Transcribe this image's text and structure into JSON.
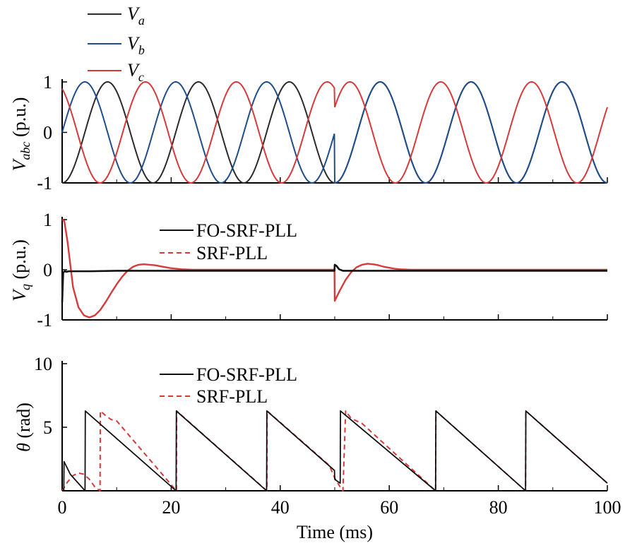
{
  "colors": {
    "Va": "#2b2b2b",
    "Vb": "#1f4e8c",
    "Vc": "#d63a3a",
    "fo": "#111111",
    "srf": "#d63a3a"
  },
  "chart_data": [
    {
      "type": "line",
      "ylabel": "Vabc (p.u.)",
      "ylabel_main": "V",
      "ylabel_sub": "abc",
      "ylabel_rest": " (p.u.)",
      "ylim": [
        -1,
        1
      ],
      "xlim": [
        0,
        100
      ],
      "yticks": [
        "1",
        "0",
        "-1"
      ],
      "yticks_values": [
        1,
        0,
        -1
      ],
      "legend": [
        "Va",
        "Vb",
        "Vc"
      ],
      "legend_main": "V",
      "legend_subs": [
        "a",
        "b",
        "c"
      ],
      "series": [
        {
          "name": "Va",
          "amplitude": 1,
          "frequency_hz": 60,
          "phase_deg": -90,
          "phase_shift_at_ms": 50,
          "phase_after_deg": -90
        },
        {
          "name": "Vb",
          "amplitude": 1,
          "frequency_hz": 60,
          "phase_deg": 0,
          "phase_shift_at_ms": 50,
          "phase_after_deg": -90
        },
        {
          "name": "Vc",
          "amplitude": 1,
          "frequency_hz": 60,
          "phase_deg": 120,
          "phase_shift_at_ms": 50,
          "phase_after_deg": 30
        }
      ]
    },
    {
      "type": "line",
      "ylabel": "Vq (p.u.)",
      "ylabel_main": "V",
      "ylabel_sub": "q",
      "ylabel_rest": " (p.u.)",
      "ylim": [
        -1,
        1
      ],
      "xlim": [
        0,
        100
      ],
      "yticks": [
        "1",
        "0",
        "-1"
      ],
      "yticks_values": [
        1,
        0,
        -1
      ],
      "legend": [
        "FO-SRF-PLL",
        "SRF-PLL"
      ],
      "series": [
        {
          "name": "FO-SRF-PLL",
          "x": [
            0,
            0.2,
            0.5,
            0.8,
            1.2,
            2,
            3,
            5,
            10,
            20,
            49.95,
            50,
            50.3,
            50.8,
            51.5,
            53,
            56,
            100
          ],
          "y": [
            -0.65,
            -0.05,
            -0.03,
            -0.04,
            -0.03,
            -0.03,
            -0.03,
            -0.03,
            -0.02,
            -0.02,
            -0.02,
            0.1,
            0.08,
            0.01,
            -0.02,
            -0.02,
            -0.02,
            -0.02
          ]
        },
        {
          "name": "SRF-PLL",
          "x": [
            0,
            0.4,
            1,
            2,
            3,
            4,
            5,
            6,
            7,
            8,
            9,
            10,
            11,
            12,
            13,
            14,
            15,
            16,
            17,
            18,
            19,
            20,
            22,
            24,
            26,
            30,
            49.95,
            50,
            51,
            52,
            53,
            54,
            55,
            56,
            57,
            58,
            59,
            60,
            61,
            62,
            64,
            66,
            70,
            100
          ],
          "y": [
            1.0,
            0.97,
            0.55,
            -0.35,
            -0.75,
            -0.91,
            -0.95,
            -0.91,
            -0.8,
            -0.64,
            -0.46,
            -0.29,
            -0.14,
            -0.02,
            0.06,
            0.1,
            0.11,
            0.1,
            0.09,
            0.07,
            0.05,
            0.03,
            0.01,
            0.0,
            0.0,
            0.0,
            0.0,
            -0.62,
            -0.4,
            -0.2,
            -0.05,
            0.05,
            0.1,
            0.12,
            0.11,
            0.09,
            0.06,
            0.04,
            0.02,
            0.01,
            0.0,
            0.0,
            0.0,
            0.0
          ]
        }
      ]
    },
    {
      "type": "line",
      "ylabel": "θ (rad)",
      "ylabel_main": "θ",
      "ylabel_rest": " (rad)",
      "xlabel": "Time (ms)",
      "ylim": [
        0,
        10
      ],
      "xlim": [
        0,
        100
      ],
      "yticks": [
        "10",
        "5"
      ],
      "yticks_values": [
        10,
        5
      ],
      "xticks": [
        "0",
        "20",
        "40",
        "60",
        "80",
        "100"
      ],
      "xticks_values": [
        0,
        20,
        40,
        60,
        80,
        100
      ],
      "legend": [
        "FO-SRF-PLL",
        "SRF-PLL"
      ],
      "series": [
        {
          "name": "FO-SRF-PLL",
          "x": [
            0,
            0.3,
            0.35,
            1.5,
            4.2,
            4.25,
            20.9,
            20.95,
            37.5,
            37.55,
            49.95,
            50,
            51,
            51.05,
            68.5,
            68.55,
            85,
            85.05,
            100
          ],
          "y": [
            0,
            0,
            2.3,
            1.3,
            0,
            6.28,
            0,
            6.28,
            0,
            6.28,
            1.6,
            0.9,
            0.6,
            6.28,
            0,
            6.28,
            0,
            6.28,
            0.6
          ]
        },
        {
          "name": "SRF-PLL",
          "x": [
            0,
            1,
            2,
            3,
            4,
            5,
            6,
            6.95,
            7,
            8,
            9,
            10,
            20.95,
            21,
            37.55,
            37.6,
            49,
            50,
            51,
            51.5,
            52,
            53,
            55,
            68.5,
            68.55,
            85,
            85.05,
            100
          ],
          "y": [
            0,
            0.7,
            1.2,
            1.4,
            1.3,
            0.9,
            0.3,
            0,
            6.28,
            5.9,
            5.6,
            5.5,
            0,
            6.28,
            0,
            6.28,
            2.0,
            1.0,
            0.3,
            0,
            6.28,
            5.7,
            5.3,
            0,
            6.28,
            0,
            6.28,
            0.6
          ]
        }
      ]
    }
  ]
}
